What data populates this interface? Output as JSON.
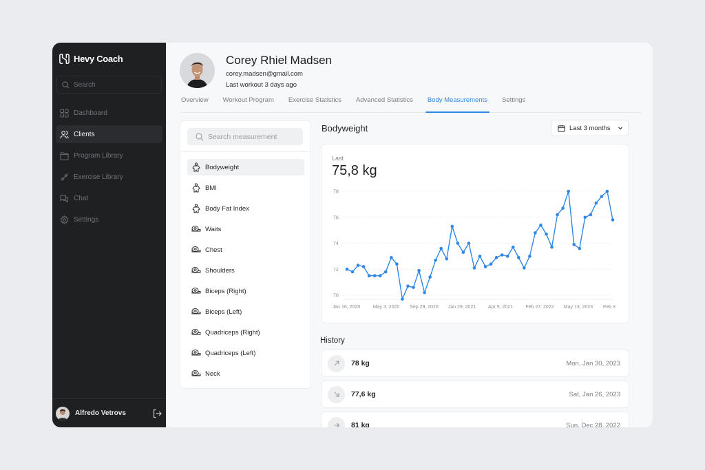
{
  "app": {
    "brand": "Hevy Coach",
    "search_placeholder": "Search"
  },
  "sidebar": {
    "items": [
      {
        "label": "Dashboard",
        "icon": "dashboard-icon"
      },
      {
        "label": "Clients",
        "icon": "users-icon",
        "active": true
      },
      {
        "label": "Program Library",
        "icon": "folder-icon"
      },
      {
        "label": "Exercise Library",
        "icon": "dumbbell-icon"
      },
      {
        "label": "Chat",
        "icon": "chat-icon"
      },
      {
        "label": "Settings",
        "icon": "gear-icon"
      }
    ],
    "user": {
      "name": "Alfredo Vetrovs",
      "logout_icon": "logout-icon"
    }
  },
  "client": {
    "name": "Corey Rhiel Madsen",
    "email": "corey.madsen@gmail.com",
    "last_workout": "Last workout 3 days ago"
  },
  "tabs": [
    {
      "label": "Overview"
    },
    {
      "label": "Workout Program"
    },
    {
      "label": "Exercise Statistics"
    },
    {
      "label": "Advanced Statistics"
    },
    {
      "label": "Body Measurements",
      "active": true
    },
    {
      "label": "Settings"
    }
  ],
  "measurements": {
    "search_placeholder": "Search measurement",
    "items": [
      {
        "label": "Bodyweight",
        "icon": "body-icon",
        "active": true
      },
      {
        "label": "BMI",
        "icon": "body-icon"
      },
      {
        "label": "Body Fat Index",
        "icon": "body-icon"
      },
      {
        "label": "Waits",
        "icon": "tape-measure-icon"
      },
      {
        "label": "Chest",
        "icon": "tape-measure-icon"
      },
      {
        "label": "Shoulders",
        "icon": "tape-measure-icon"
      },
      {
        "label": "Biceps (Right)",
        "icon": "tape-measure-icon"
      },
      {
        "label": "Biceps (Left)",
        "icon": "tape-measure-icon"
      },
      {
        "label": "Quadriceps (Right)",
        "icon": "tape-measure-icon"
      },
      {
        "label": "Quadriceps (Left)",
        "icon": "tape-measure-icon"
      },
      {
        "label": "Neck",
        "icon": "tape-measure-icon"
      }
    ]
  },
  "panel": {
    "title": "Bodyweight",
    "range": "Last 3 months",
    "last_label": "Last",
    "last_value": "75,8 kg"
  },
  "chart_data": {
    "type": "line",
    "title": "Bodyweight",
    "xlabel": "",
    "ylabel": "",
    "ylim": [
      70,
      78
    ],
    "yticks": [
      70,
      72,
      74,
      76,
      78
    ],
    "grid": true,
    "color": "#2f87e6",
    "x_tick_labels": [
      "Jan 16, 2020",
      "May 3, 2020",
      "Sep 29, 2020",
      "Jan 29, 2021",
      "Apr 5, 2021",
      "Feb 27, 2022",
      "May 13, 2023",
      "Feb 3"
    ],
    "values": [
      72.0,
      71.8,
      72.3,
      72.2,
      71.5,
      71.5,
      71.5,
      71.8,
      72.9,
      72.4,
      69.7,
      70.7,
      70.6,
      71.9,
      70.2,
      71.4,
      72.7,
      73.6,
      72.8,
      75.3,
      74.0,
      73.3,
      74.0,
      72.1,
      73.0,
      72.2,
      72.4,
      72.9,
      73.1,
      73.0,
      73.7,
      72.9,
      72.1,
      73.0,
      74.8,
      75.4,
      74.7,
      73.7,
      76.2,
      76.7,
      78.0,
      73.9,
      73.6,
      76.0,
      76.2,
      77.1,
      77.6,
      78.0,
      75.8
    ]
  },
  "history": {
    "title": "History",
    "rows": [
      {
        "value": "78 kg",
        "date": "Mon, Jan 30, 2023",
        "trend": "up",
        "icon": "arrow-up-right-icon"
      },
      {
        "value": "77,6 kg",
        "date": "Sat, Jan 26, 2023",
        "trend": "down",
        "icon": "arrow-down-right-icon"
      },
      {
        "value": "81 kg",
        "date": "Sun, Dec 28, 2022",
        "trend": "flat",
        "icon": "arrow-right-icon"
      }
    ]
  }
}
